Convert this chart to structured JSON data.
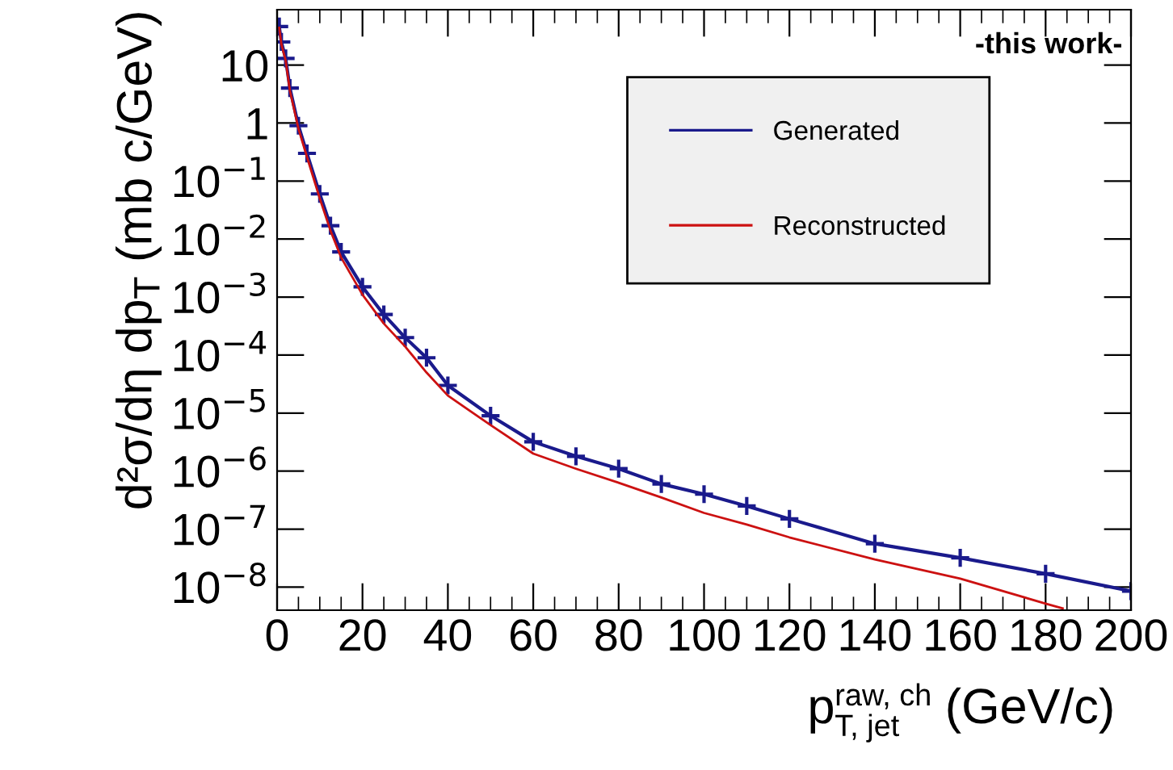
{
  "chart_data": {
    "type": "line",
    "xlabel": "p$^{raw, ch}$$_{T, jet}$ (GeV/c)",
    "ylabel": "d²σ/dη dp$_{T}$ (mb c/GeV)",
    "annotations": [
      "-this work-"
    ],
    "log": "y",
    "grid": false,
    "legend": "top right",
    "xlim": [
      0,
      200
    ],
    "ylim": [
      4e-09,
      90
    ],
    "xticks": [
      0,
      20,
      40,
      60,
      80,
      100,
      120,
      140,
      160,
      180,
      200
    ],
    "yticks": [
      {
        "value": 1e-08,
        "label": "10$^{−8}$"
      },
      {
        "value": 1e-07,
        "label": "10$^{−7}$"
      },
      {
        "value": 1e-06,
        "label": "10$^{−6}$"
      },
      {
        "value": 1e-05,
        "label": "10$^{−5}$"
      },
      {
        "value": 0.0001,
        "label": "10$^{−4}$"
      },
      {
        "value": 0.001,
        "label": "10$^{−3}$"
      },
      {
        "value": 0.01,
        "label": "10$^{−2}$"
      },
      {
        "value": 0.1,
        "label": "10$^{−1}$"
      },
      1,
      10
    ],
    "series": [
      {
        "name": "Generated",
        "color": "#1a1a8c",
        "marker": "cross",
        "line_style": "solid",
        "x": [
          0.5,
          1,
          2,
          3,
          5,
          7,
          10,
          12.5,
          15,
          20,
          25,
          30,
          35,
          40,
          50,
          60,
          70,
          80,
          90,
          100,
          110,
          120,
          140,
          160,
          180,
          200
        ],
        "values": [
          46,
          25,
          13,
          4,
          0.9,
          0.3,
          0.06,
          0.017,
          0.006,
          0.0015,
          0.0005,
          0.0002,
          9e-05,
          3e-05,
          9e-06,
          3.2e-06,
          1.8e-06,
          1.1e-06,
          6e-07,
          4e-07,
          2.5e-07,
          1.5e-07,
          5.6e-08,
          3.2e-08,
          1.7e-08,
          8.5e-09
        ]
      },
      {
        "name": "Reconstructed",
        "color": "#cc1111",
        "marker": "none",
        "line_style": "solid",
        "x": [
          0.5,
          1,
          2,
          3,
          5,
          7,
          10,
          12.5,
          15,
          20,
          25,
          30,
          35,
          40,
          50,
          60,
          70,
          80,
          90,
          100,
          110,
          120,
          140,
          160,
          180,
          184
        ],
        "values": [
          44,
          23,
          12,
          3.6,
          0.8,
          0.26,
          0.05,
          0.014,
          0.0048,
          0.0011,
          0.00035,
          0.00014,
          5e-05,
          2e-05,
          6.2e-06,
          2e-06,
          1.1e-06,
          6.3e-07,
          3.5e-07,
          1.9e-07,
          1.2e-07,
          7.2e-08,
          3e-08,
          1.4e-08,
          5.2e-09,
          4.3e-09
        ]
      }
    ]
  }
}
